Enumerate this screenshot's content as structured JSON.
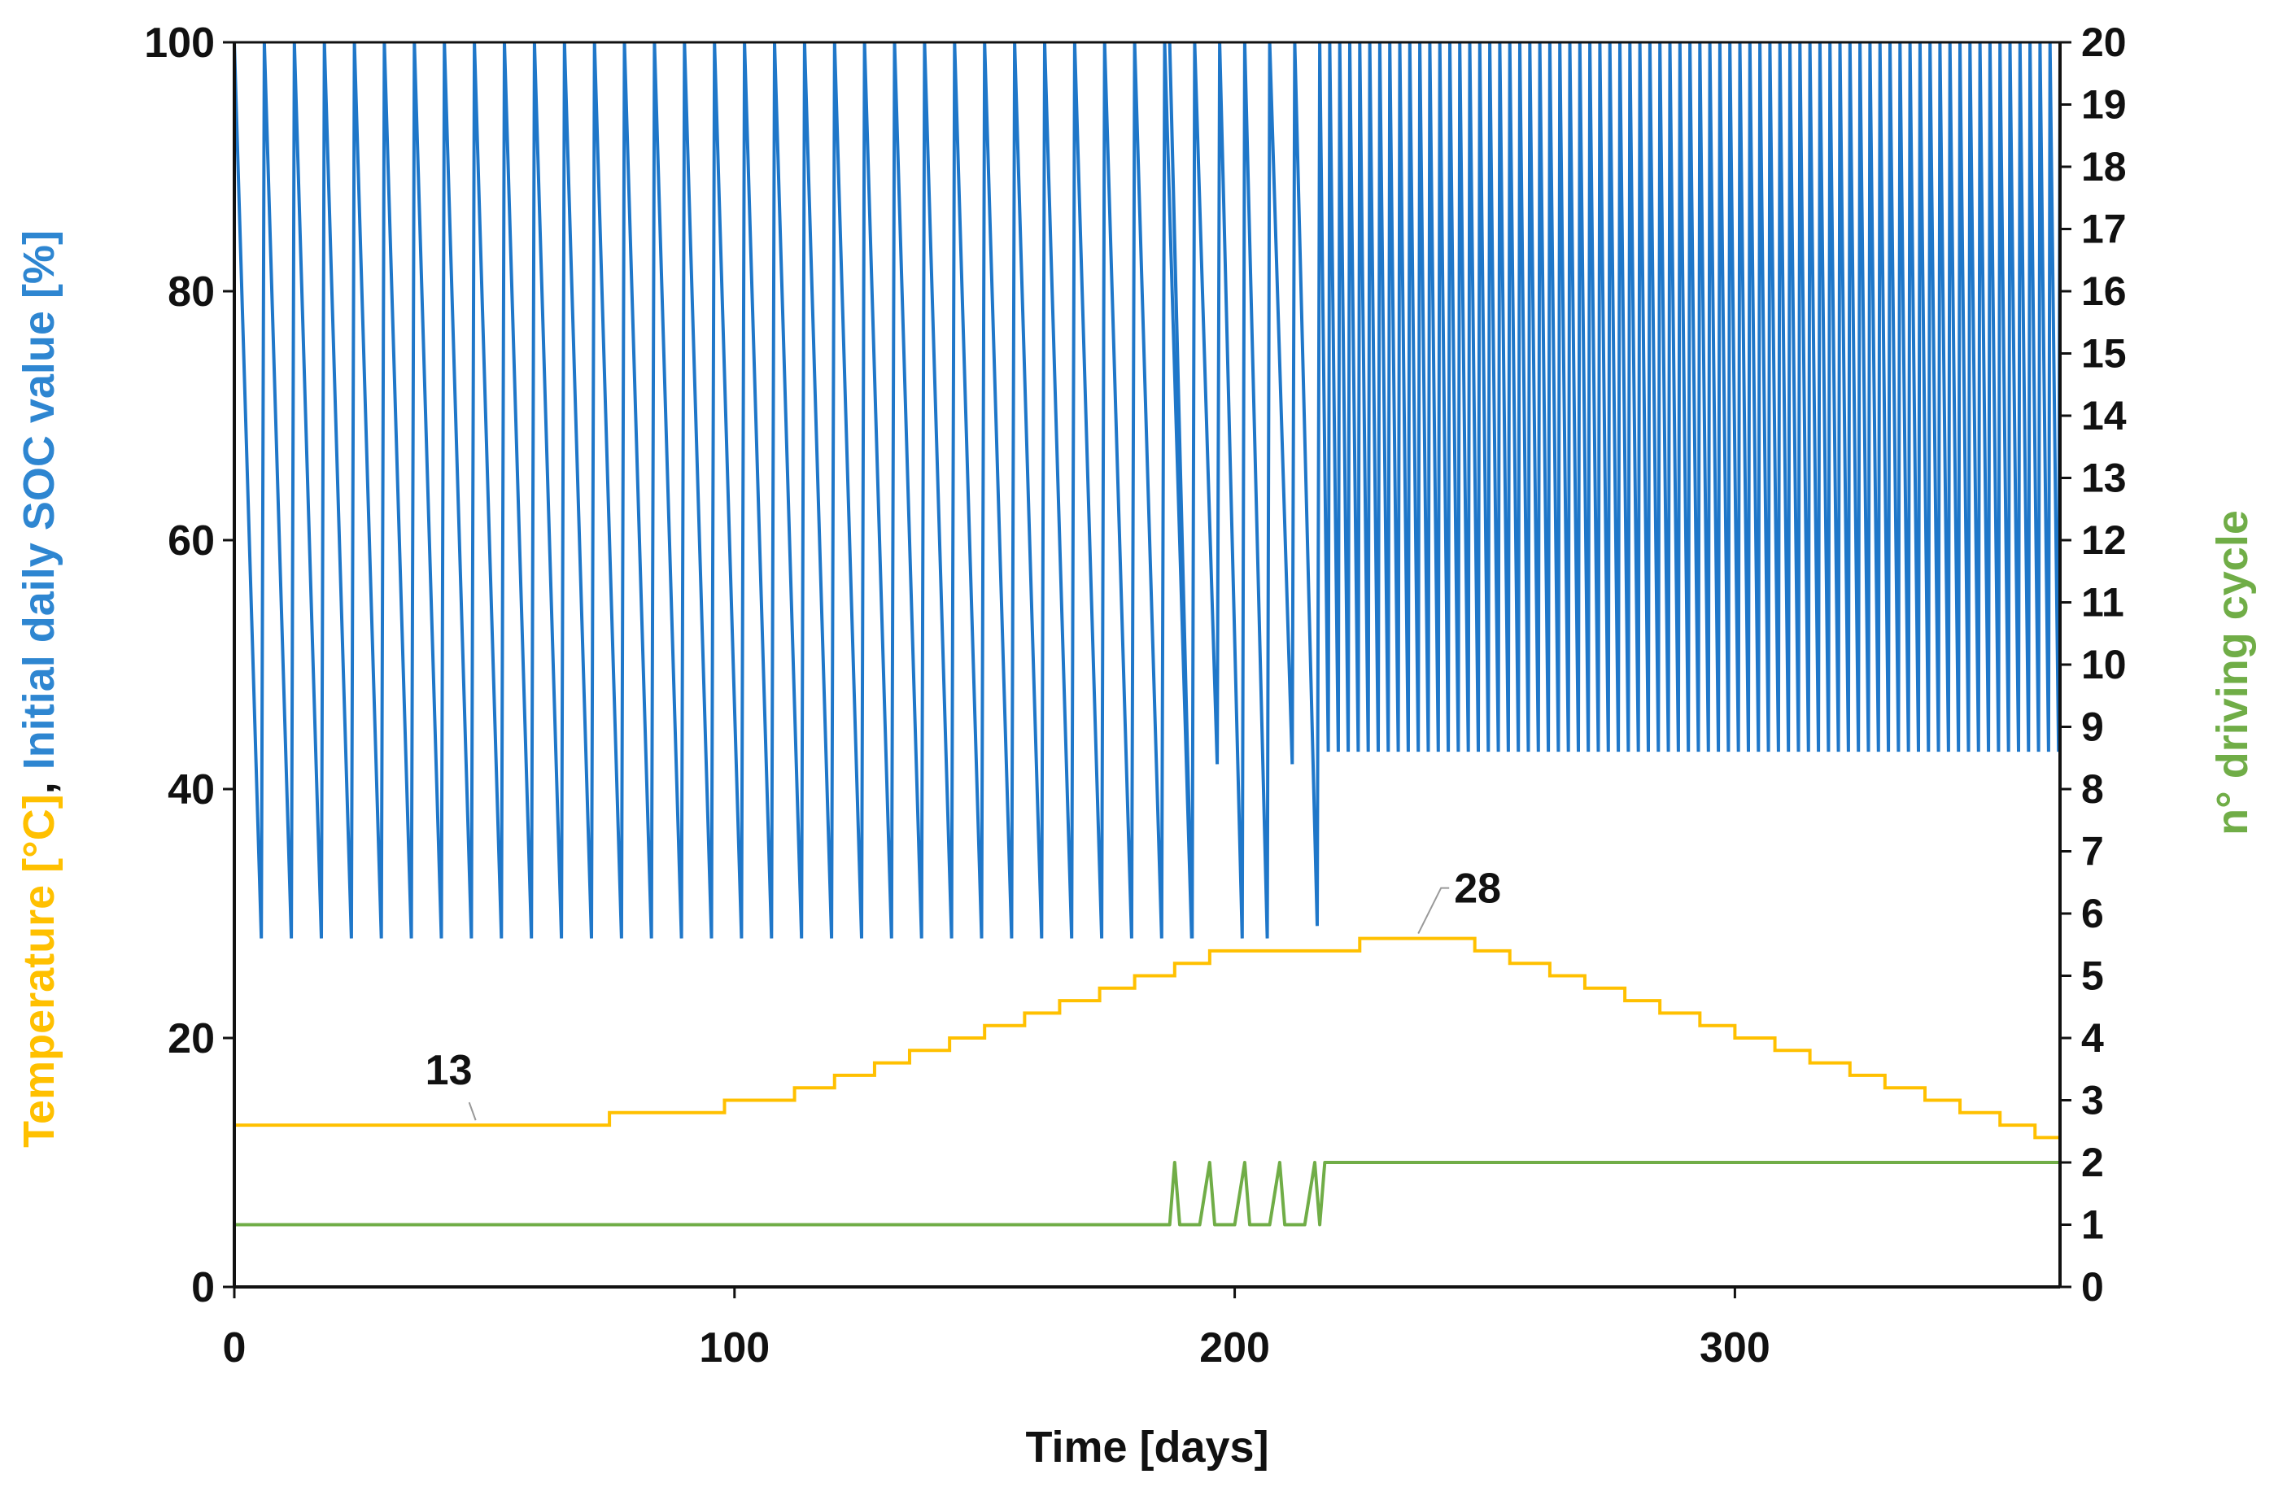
{
  "chart_data": {
    "type": "line",
    "xlabel": "Time [days]",
    "ylabel_left_parts": [
      {
        "text": "Temperature [°C]",
        "color": "#FFC000"
      },
      {
        "text": ", ",
        "color": "#111111"
      },
      {
        "text": "Initial daily SOC value [%]",
        "color": "#2E86D1"
      }
    ],
    "ylabel_right": "n° driving cycle",
    "ylabel_right_color": "#70AD47",
    "xlim": [
      0,
      365
    ],
    "xticks": [
      0,
      100,
      200,
      300
    ],
    "ylim_left": [
      0,
      100
    ],
    "yticks_left": [
      0,
      20,
      40,
      60,
      80,
      100
    ],
    "ylim_right": [
      0,
      20
    ],
    "yticks_right": [
      0,
      1,
      2,
      3,
      4,
      5,
      6,
      7,
      8,
      9,
      10,
      11,
      12,
      13,
      14,
      15,
      16,
      17,
      18,
      19,
      20
    ],
    "grid": false,
    "legend": "none",
    "series": [
      {
        "axis": "left",
        "color": "#1F77C9",
        "pattern": "sawtooth",
        "description_segments": [
          {
            "x_start": 0,
            "x_end": 187,
            "period_days": 6,
            "low": 28,
            "high": 100
          },
          {
            "x_start": 187,
            "x_end": 217,
            "irregular": true,
            "lows": [
              28,
              42,
              28,
              28,
              42,
              29
            ]
          },
          {
            "x_start": 217,
            "x_end": 365,
            "period_days": 2,
            "low": 43,
            "high": 100
          }
        ]
      },
      {
        "axis": "left",
        "color": "#FFC000",
        "pattern": "step",
        "steps": [
          {
            "x": 0,
            "y": 13
          },
          {
            "x": 75,
            "y": 14
          },
          {
            "x": 98,
            "y": 15
          },
          {
            "x": 112,
            "y": 16
          },
          {
            "x": 120,
            "y": 17
          },
          {
            "x": 128,
            "y": 18
          },
          {
            "x": 135,
            "y": 19
          },
          {
            "x": 143,
            "y": 20
          },
          {
            "x": 150,
            "y": 21
          },
          {
            "x": 158,
            "y": 22
          },
          {
            "x": 165,
            "y": 23
          },
          {
            "x": 173,
            "y": 24
          },
          {
            "x": 180,
            "y": 25
          },
          {
            "x": 188,
            "y": 26
          },
          {
            "x": 195,
            "y": 27
          },
          {
            "x": 210,
            "y": 27
          },
          {
            "x": 225,
            "y": 28
          },
          {
            "x": 248,
            "y": 27
          },
          {
            "x": 255,
            "y": 26
          },
          {
            "x": 263,
            "y": 25
          },
          {
            "x": 270,
            "y": 24
          },
          {
            "x": 278,
            "y": 23
          },
          {
            "x": 285,
            "y": 22
          },
          {
            "x": 293,
            "y": 21
          },
          {
            "x": 300,
            "y": 20
          },
          {
            "x": 308,
            "y": 19
          },
          {
            "x": 315,
            "y": 18
          },
          {
            "x": 323,
            "y": 17
          },
          {
            "x": 330,
            "y": 16
          },
          {
            "x": 338,
            "y": 15
          },
          {
            "x": 345,
            "y": 14
          },
          {
            "x": 353,
            "y": 13
          },
          {
            "x": 360,
            "y": 12
          },
          {
            "x": 365,
            "y": 12
          }
        ],
        "annotations": [
          {
            "label": "13",
            "x": 45,
            "y": 13
          },
          {
            "label": "28",
            "x": 238,
            "y": 28
          }
        ]
      },
      {
        "axis": "right",
        "color": "#70AD47",
        "pattern": "step",
        "steps": [
          {
            "x": 0,
            "y": 1
          },
          {
            "x": 187,
            "y": 1
          },
          {
            "x": 188,
            "y": 2
          },
          {
            "x": 189,
            "y": 1
          },
          {
            "x": 193,
            "y": 1
          },
          {
            "x": 195,
            "y": 2
          },
          {
            "x": 196,
            "y": 1
          },
          {
            "x": 200,
            "y": 1
          },
          {
            "x": 202,
            "y": 2
          },
          {
            "x": 203,
            "y": 1
          },
          {
            "x": 207,
            "y": 1
          },
          {
            "x": 209,
            "y": 2
          },
          {
            "x": 210,
            "y": 1
          },
          {
            "x": 214,
            "y": 1
          },
          {
            "x": 216,
            "y": 2
          },
          {
            "x": 217,
            "y": 1
          },
          {
            "x": 218,
            "y": 2
          },
          {
            "x": 365,
            "y": 2
          }
        ]
      }
    ]
  }
}
